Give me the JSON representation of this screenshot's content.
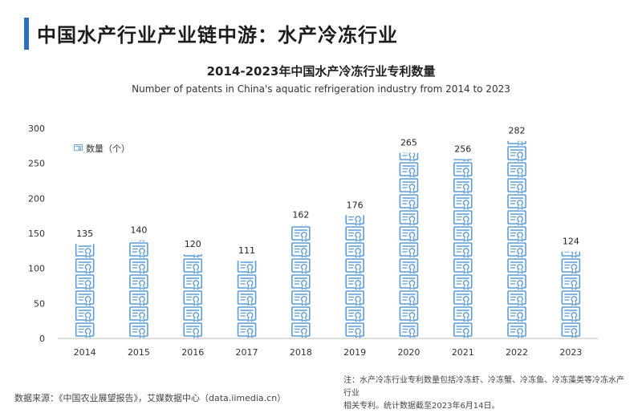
{
  "header": {
    "title": "中国水产行业产业链中游：水产冷冻行业",
    "accent_color": "#2f6fb3"
  },
  "chart_data": {
    "type": "bar",
    "title": "2014-2023年中国水产冷冻行业专利数量",
    "subtitle": "Number of patents in China's aquatic refrigeration industry from 2014 to 2023",
    "categories": [
      "2014",
      "2015",
      "2016",
      "2017",
      "2018",
      "2019",
      "2020",
      "2021",
      "2022",
      "2023"
    ],
    "series": [
      {
        "name": "数量（个）",
        "values": [
          135,
          140,
          120,
          111,
          162,
          176,
          265,
          256,
          282,
          124
        ]
      }
    ],
    "ylim": [
      0,
      300
    ],
    "yticks": [
      0,
      50,
      100,
      150,
      200,
      250,
      300
    ],
    "grid": false,
    "legend_position": "top-left",
    "bar_style": "stacked-certificate-icons",
    "bar_color": "#5b9bd5"
  },
  "footer": {
    "source": "数据来源：《中国农业展望报告》，艾媒数据中心（data.iimedia.cn）",
    "note_line1": "注：水产冷冻行业专利数量包括冷冻虾、冷冻蟹、冷冻鱼、冷冻藻类等冷冻水产行业",
    "note_line2": "相关专利。统计数据截至2023年6月14日。"
  }
}
